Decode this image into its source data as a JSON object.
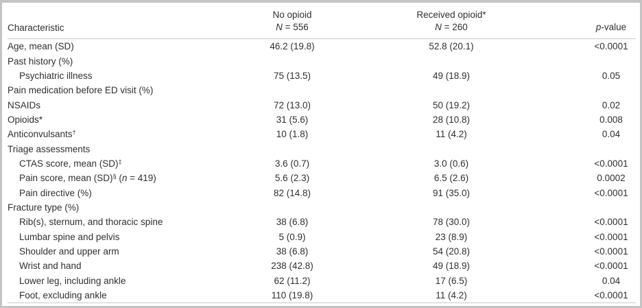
{
  "colors": {
    "frame": "#c4c4c4",
    "rule": "#c9c9c9",
    "text": "#2f2f2f",
    "background": "#ffffff"
  },
  "table": {
    "header": {
      "characteristic_label": "Characteristic",
      "no_opioid_group": {
        "title": "No opioid",
        "n_parts": [
          {
            "t": "i",
            "v": "N"
          },
          {
            "t": "t",
            "v": " = 556"
          }
        ]
      },
      "received_opioid_group": {
        "title": "Received opioid*",
        "n_parts": [
          {
            "t": "i",
            "v": "N"
          },
          {
            "t": "t",
            "v": " = 260"
          }
        ]
      },
      "p_value_parts": [
        {
          "t": "i",
          "v": "p"
        },
        {
          "t": "t",
          "v": "-value"
        }
      ]
    },
    "rows": [
      {
        "indent": false,
        "label_parts": [
          {
            "t": "t",
            "v": "Age, mean (SD)"
          }
        ],
        "no_opioid": "46.2 (19.8)",
        "received_opioid": "52.8 (20.1)",
        "p_value": "<0.0001"
      },
      {
        "indent": false,
        "label_parts": [
          {
            "t": "t",
            "v": "Past history (%)"
          }
        ],
        "no_opioid": "",
        "received_opioid": "",
        "p_value": ""
      },
      {
        "indent": true,
        "label_parts": [
          {
            "t": "t",
            "v": "Psychiatric illness"
          }
        ],
        "no_opioid": "75 (13.5)",
        "received_opioid": "49 (18.9)",
        "p_value": "0.05"
      },
      {
        "indent": false,
        "label_parts": [
          {
            "t": "t",
            "v": "Pain medication before ED visit (%)"
          }
        ],
        "no_opioid": "",
        "received_opioid": "",
        "p_value": ""
      },
      {
        "indent": false,
        "label_parts": [
          {
            "t": "t",
            "v": "NSAIDs"
          }
        ],
        "no_opioid": "72 (13.0)",
        "received_opioid": "50 (19.2)",
        "p_value": "0.02"
      },
      {
        "indent": false,
        "label_parts": [
          {
            "t": "t",
            "v": "Opioids*"
          }
        ],
        "no_opioid": "31 (5.6)",
        "received_opioid": "28 (10.8)",
        "p_value": "0.008"
      },
      {
        "indent": false,
        "label_parts": [
          {
            "t": "t",
            "v": "Anticonvulsants"
          },
          {
            "t": "s",
            "v": "†"
          }
        ],
        "no_opioid": "10 (1.8)",
        "received_opioid": "11 (4.2)",
        "p_value": "0.04"
      },
      {
        "indent": false,
        "label_parts": [
          {
            "t": "t",
            "v": "Triage assessments"
          }
        ],
        "no_opioid": "",
        "received_opioid": "",
        "p_value": ""
      },
      {
        "indent": true,
        "label_parts": [
          {
            "t": "t",
            "v": "CTAS score, mean (SD)"
          },
          {
            "t": "s",
            "v": "‡"
          }
        ],
        "no_opioid": "3.6 (0.7)",
        "received_opioid": "3.0 (0.6)",
        "p_value": "<0.0001"
      },
      {
        "indent": true,
        "label_parts": [
          {
            "t": "t",
            "v": "Pain score, mean (SD)"
          },
          {
            "t": "s",
            "v": "§"
          },
          {
            "t": "t",
            "v": " ("
          },
          {
            "t": "i",
            "v": "n"
          },
          {
            "t": "t",
            "v": " = 419)"
          }
        ],
        "no_opioid": "5.6 (2.3)",
        "received_opioid": "6.5 (2.6)",
        "p_value": "0.0002"
      },
      {
        "indent": true,
        "label_parts": [
          {
            "t": "t",
            "v": "Pain directive (%)"
          }
        ],
        "no_opioid": "82 (14.8)",
        "received_opioid": "91 (35.0)",
        "p_value": "<0.0001"
      },
      {
        "indent": false,
        "label_parts": [
          {
            "t": "t",
            "v": "Fracture type (%)"
          }
        ],
        "no_opioid": "",
        "received_opioid": "",
        "p_value": ""
      },
      {
        "indent": true,
        "label_parts": [
          {
            "t": "t",
            "v": "Rib(s), sternum, and thoracic spine"
          }
        ],
        "no_opioid": "38 (6.8)",
        "received_opioid": "78 (30.0)",
        "p_value": "<0.0001"
      },
      {
        "indent": true,
        "label_parts": [
          {
            "t": "t",
            "v": "Lumbar spine and pelvis"
          }
        ],
        "no_opioid": "5 (0.9)",
        "received_opioid": "23 (8.9)",
        "p_value": "<0.0001"
      },
      {
        "indent": true,
        "label_parts": [
          {
            "t": "t",
            "v": "Shoulder and upper arm"
          }
        ],
        "no_opioid": "38 (6.8)",
        "received_opioid": "54 (20.8)",
        "p_value": "<0.0001"
      },
      {
        "indent": true,
        "label_parts": [
          {
            "t": "t",
            "v": "Wrist and hand"
          }
        ],
        "no_opioid": "238 (42.8)",
        "received_opioid": "49 (18.9)",
        "p_value": "<0.0001"
      },
      {
        "indent": true,
        "label_parts": [
          {
            "t": "t",
            "v": "Lower leg, including ankle"
          }
        ],
        "no_opioid": "62 (11.2)",
        "received_opioid": "17 (6.5)",
        "p_value": "0.04"
      },
      {
        "indent": true,
        "label_parts": [
          {
            "t": "t",
            "v": "Foot, excluding ankle"
          }
        ],
        "no_opioid": "110 (19.8)",
        "received_opioid": "11 (4.2)",
        "p_value": "<0.0001"
      }
    ]
  }
}
